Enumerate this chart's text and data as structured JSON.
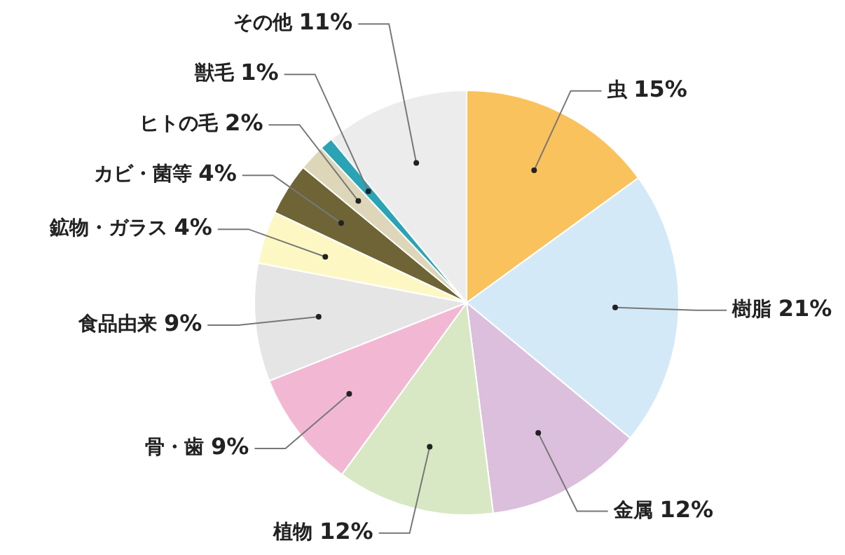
{
  "chart_data": {
    "type": "pie",
    "categories": [
      "虫",
      "樹脂",
      "金属",
      "植物",
      "骨・歯",
      "食品由来",
      "鉱物・ガラス",
      "カビ・菌等",
      "ヒトの毛",
      "獣毛",
      "その他"
    ],
    "values": [
      15,
      21,
      12,
      12,
      9,
      9,
      4,
      4,
      2,
      1,
      11
    ],
    "colors": [
      "#f9c25c",
      "#d4e9f7",
      "#dcbfdc",
      "#d8e8c4",
      "#f2b8d3",
      "#e5e5e5",
      "#fdf8c3",
      "#6e6436",
      "#ddd6b8",
      "#2aa3b5",
      "#ececec"
    ],
    "value_labels": [
      "15%",
      "21%",
      "12%",
      "12%",
      "9%",
      "9%",
      "4%",
      "4%",
      "2%",
      "1%",
      "11%"
    ],
    "legend": false
  }
}
